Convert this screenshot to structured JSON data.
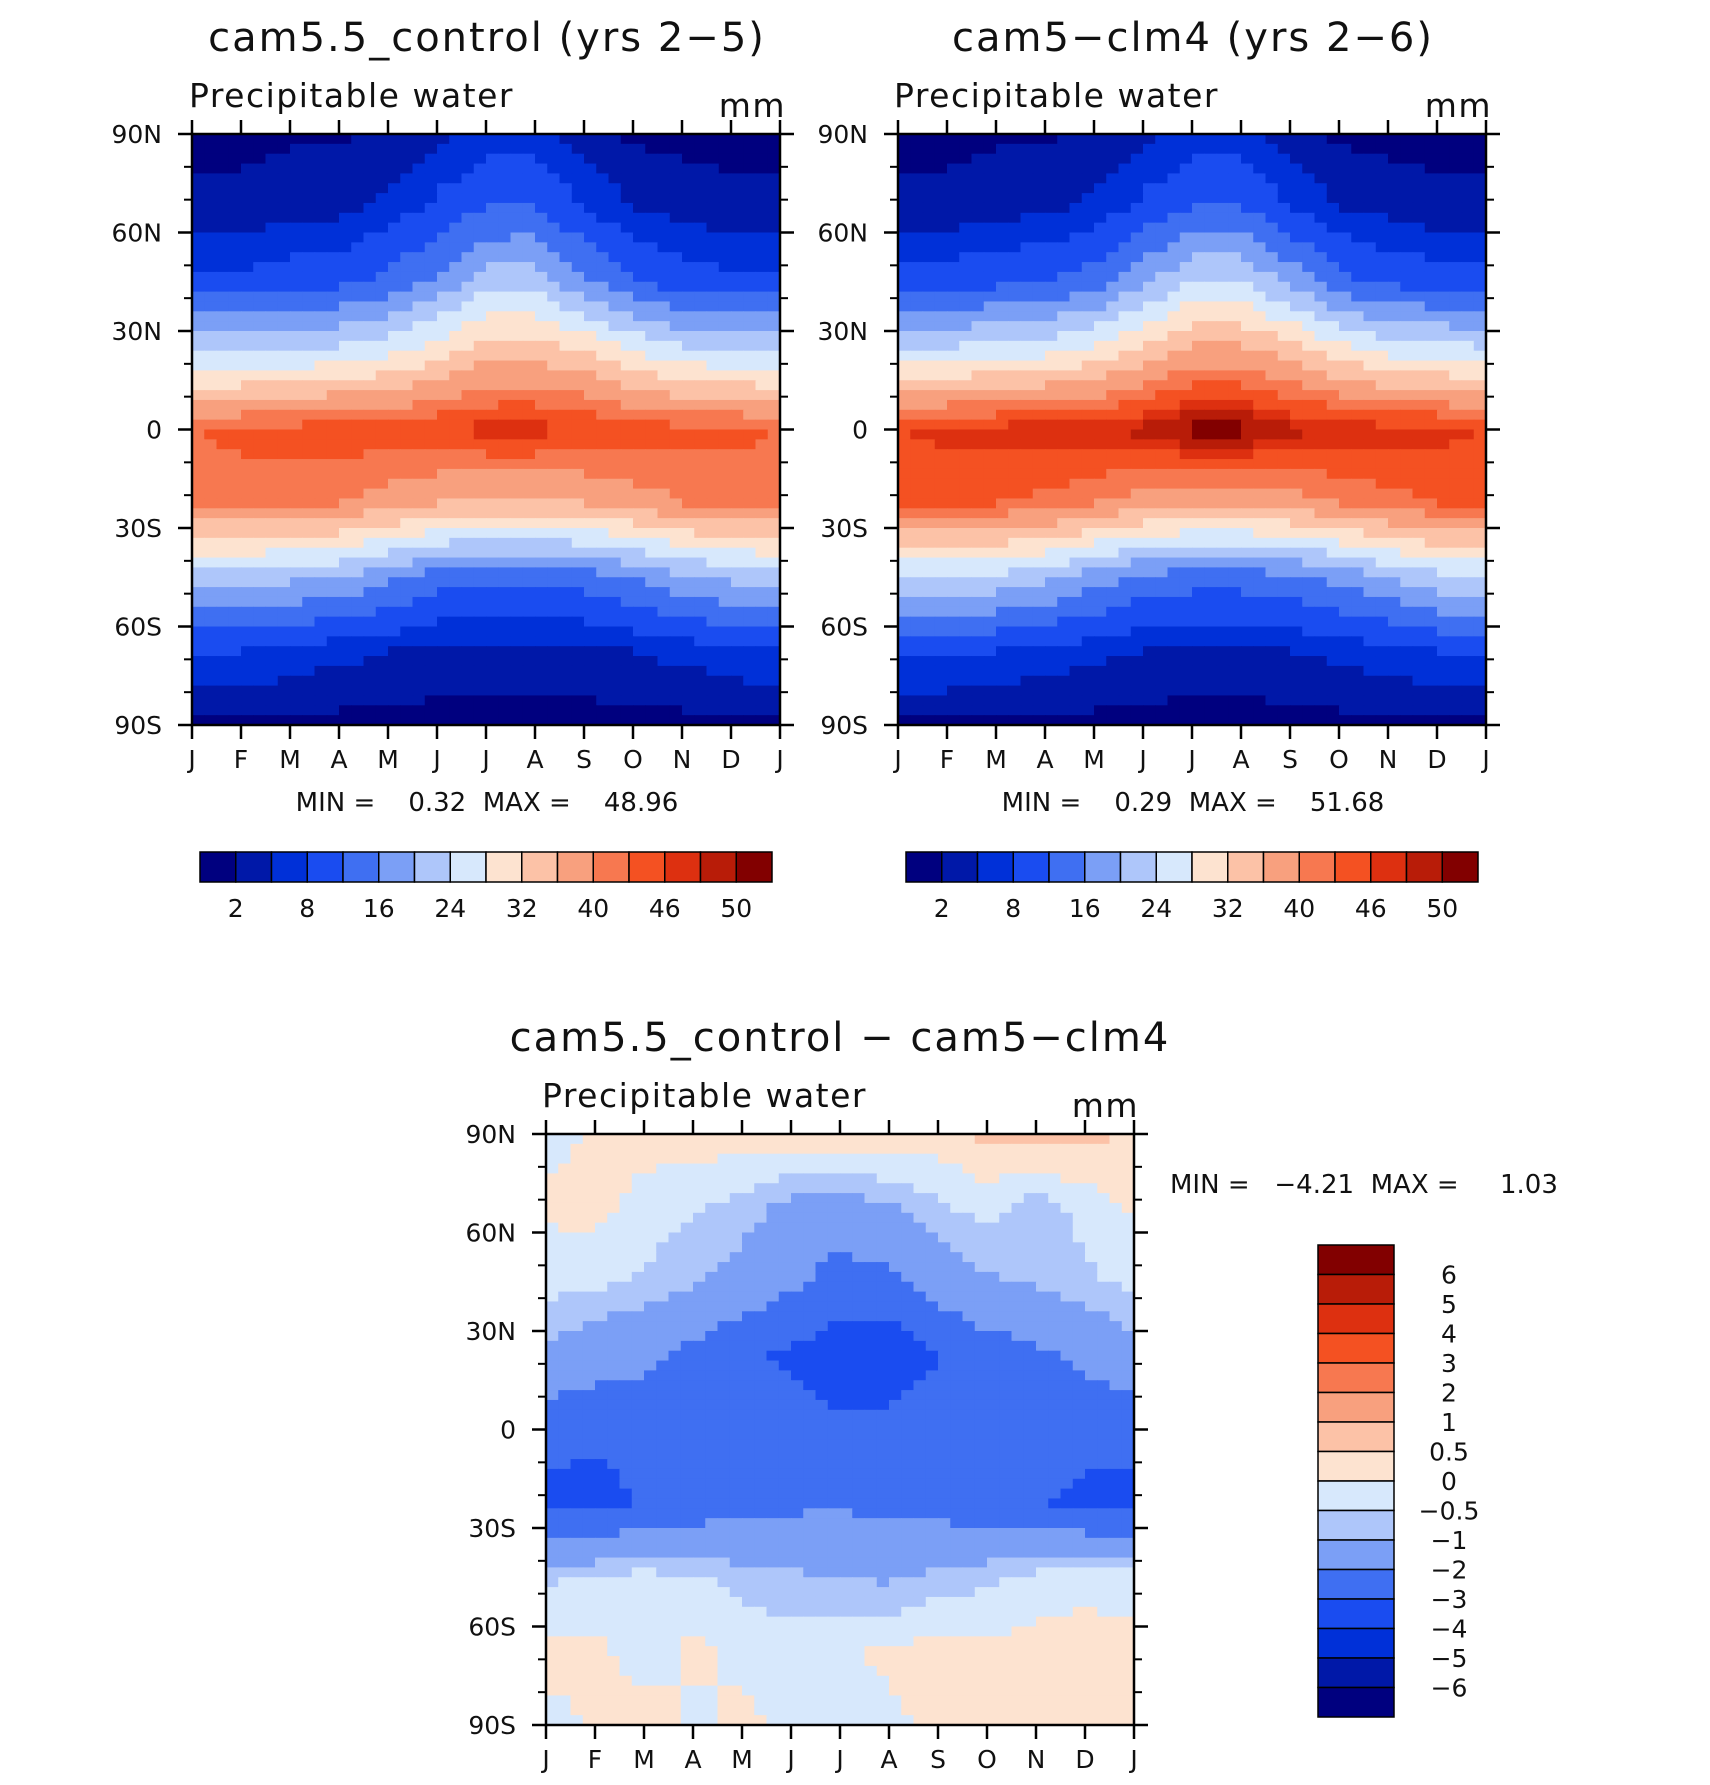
{
  "colors": {
    "absolute": [
      "#00007f",
      "#0018a8",
      "#0030d8",
      "#1a4cf0",
      "#3f6ff2",
      "#7b9ff6",
      "#aec6fa",
      "#d7e8fc",
      "#fde3d0",
      "#fcc2a7",
      "#f8a07e",
      "#f77850",
      "#f45122",
      "#dd3010",
      "#b81c08",
      "#820000"
    ],
    "difference": [
      "#00007f",
      "#0018a8",
      "#0030d8",
      "#1a4cf0",
      "#3f6ff2",
      "#7b9ff6",
      "#aec6fa",
      "#d7e8fc",
      "#fde3d0",
      "#fcc2a7",
      "#f8a07e",
      "#f77850",
      "#f45122",
      "#dd3010",
      "#b81c08",
      "#820000"
    ]
  },
  "month_labels": [
    "J",
    "F",
    "M",
    "A",
    "M",
    "J",
    "J",
    "A",
    "S",
    "O",
    "N",
    "D",
    "J"
  ],
  "lat_labels": [
    "90N",
    "60N",
    "30N",
    "0",
    "30S",
    "60S",
    "90S"
  ],
  "panels": [
    {
      "title": "cam5.5_control (yrs 2−5)",
      "variable": "Precipitable water",
      "units": "mm",
      "stats": "MIN =    0.32  MAX =    48.96",
      "colorbar_labels": [
        "2",
        "8",
        "16",
        "24",
        "32",
        "40",
        "46",
        "50"
      ]
    },
    {
      "title": "cam5−clm4 (yrs 2−6)",
      "variable": "Precipitable water",
      "units": "mm",
      "stats": "MIN =    0.29  MAX =    51.68",
      "colorbar_labels": [
        "2",
        "8",
        "16",
        "24",
        "32",
        "40",
        "46",
        "50"
      ]
    },
    {
      "title": "cam5.5_control − cam5−clm4",
      "variable": "Precipitable water",
      "units": "mm",
      "stats": "MIN =   −4.21  MAX =     1.03",
      "colorbar_labels": [
        "6",
        "5",
        "4",
        "3",
        "2",
        "1",
        "0.5",
        "0",
        "−0.5",
        "−1",
        "−2",
        "−3",
        "−4",
        "−5",
        "−6"
      ]
    }
  ],
  "chart_data": [
    {
      "type": "heatmap",
      "title": "cam5.5_control (yrs 2−5)",
      "subtitle": "Precipitable water",
      "units": "mm",
      "x": [
        "J",
        "F",
        "M",
        "A",
        "M",
        "J",
        "J",
        "A",
        "S",
        "O",
        "N",
        "D",
        "J"
      ],
      "y": [
        "90N",
        "60N",
        "30N",
        "0",
        "30S",
        "60S",
        "90S"
      ],
      "levels": [
        2,
        5,
        8,
        12,
        16,
        20,
        24,
        28,
        32,
        36,
        40,
        43,
        46,
        48,
        50
      ],
      "min": 0.32,
      "max": 48.96,
      "values": [
        [
          1,
          1,
          1.5,
          1.5,
          2.5,
          4,
          6,
          6,
          3,
          1.5,
          1,
          1,
          1
        ],
        [
          3,
          3,
          4,
          4,
          6,
          9,
          12,
          12,
          8,
          5,
          4,
          3,
          3
        ],
        [
          9,
          9,
          10,
          11,
          13,
          17,
          22,
          22,
          17,
          12,
          10,
          9,
          9
        ],
        [
          24,
          24,
          25,
          26,
          28,
          31,
          35,
          35,
          33,
          29,
          26,
          25,
          24
        ],
        [
          43,
          44,
          44,
          45,
          45,
          46,
          47,
          47,
          46,
          45,
          44,
          44,
          43
        ],
        [
          41,
          41,
          41,
          40,
          38,
          36,
          35,
          35,
          36,
          38,
          40,
          41,
          41
        ],
        [
          22,
          22,
          21,
          20,
          17,
          14,
          13,
          13,
          14,
          16,
          19,
          21,
          22
        ],
        [
          8,
          8,
          7,
          6,
          5,
          4,
          4,
          4,
          4,
          5,
          6,
          7,
          8
        ],
        [
          1.5,
          1.5,
          1.5,
          1,
          1,
          0.8,
          0.8,
          0.8,
          0.8,
          1,
          1,
          1.5,
          1.5
        ]
      ]
    },
    {
      "type": "heatmap",
      "title": "cam5−clm4 (yrs 2−6)",
      "subtitle": "Precipitable water",
      "units": "mm",
      "x": [
        "J",
        "F",
        "M",
        "A",
        "M",
        "J",
        "J",
        "A",
        "S",
        "O",
        "N",
        "D",
        "J"
      ],
      "y": [
        "90N",
        "60N",
        "30N",
        "0",
        "30S",
        "60S",
        "90S"
      ],
      "levels": [
        2,
        5,
        8,
        12,
        16,
        20,
        24,
        28,
        32,
        36,
        40,
        43,
        46,
        48,
        50
      ],
      "min": 0.29,
      "max": 51.68,
      "values": [
        [
          1,
          1,
          1.5,
          1.5,
          2.5,
          4,
          6,
          6,
          3,
          1.5,
          1,
          1,
          1
        ],
        [
          3,
          3,
          4,
          4,
          6,
          9,
          12,
          12,
          8,
          5,
          4,
          3,
          3
        ],
        [
          10,
          10,
          11,
          12,
          14,
          19,
          24,
          24,
          19,
          13,
          11,
          10,
          10
        ],
        [
          26,
          26,
          27,
          28,
          30,
          34,
          38,
          38,
          35,
          31,
          28,
          27,
          26
        ],
        [
          46,
          47,
          47,
          48,
          48,
          49,
          51,
          51,
          49,
          48,
          47,
          47,
          46
        ],
        [
          43,
          43,
          43,
          42,
          40,
          38,
          37,
          37,
          38,
          40,
          42,
          43,
          43
        ],
        [
          24,
          24,
          23,
          21,
          18,
          15,
          14,
          14,
          15,
          17,
          20,
          23,
          24
        ],
        [
          9,
          9,
          8,
          7,
          6,
          5,
          4,
          4,
          5,
          6,
          7,
          8,
          9
        ],
        [
          1.5,
          1.5,
          1.5,
          1,
          1,
          0.8,
          0.8,
          0.8,
          0.8,
          1,
          1,
          1.5,
          1.5
        ]
      ]
    },
    {
      "type": "heatmap",
      "title": "cam5.5_control − cam5−clm4",
      "subtitle": "Precipitable water",
      "units": "mm",
      "x": [
        "J",
        "F",
        "M",
        "A",
        "M",
        "J",
        "J",
        "A",
        "S",
        "O",
        "N",
        "D",
        "J"
      ],
      "y": [
        "90N",
        "60N",
        "30N",
        "0",
        "30S",
        "60S",
        "90S"
      ],
      "levels": [
        -6,
        -5,
        -4,
        -3,
        -2,
        -1,
        -0.5,
        0,
        0.5,
        1,
        2,
        3,
        4,
        5,
        6
      ],
      "min": -4.21,
      "max": 1.03,
      "values": [
        [
          -0.2,
          0.1,
          0.2,
          0.3,
          0.2,
          0.4,
          0.6,
          0.5,
          0.3,
          0.6,
          0.8,
          0.7,
          0.3
        ],
        [
          0.1,
          0.2,
          -0.2,
          -0.4,
          -0.7,
          -1.2,
          -1.4,
          -1.1,
          -0.6,
          -0.3,
          -0.8,
          -0.3,
          0.1
        ],
        [
          -0.3,
          -0.4,
          -0.6,
          -0.9,
          -1.3,
          -1.8,
          -2.4,
          -2.2,
          -1.5,
          -1.1,
          -0.9,
          -0.6,
          -0.4
        ],
        [
          -1.2,
          -1.5,
          -1.8,
          -2.3,
          -2.8,
          -3.2,
          -3.6,
          -3.8,
          -3.0,
          -2.5,
          -2.2,
          -1.8,
          -1.3
        ],
        [
          -2.6,
          -2.8,
          -2.6,
          -2.4,
          -2.8,
          -2.5,
          -2.8,
          -2.6,
          -2.4,
          -2.7,
          -2.8,
          -2.7,
          -2.6
        ],
        [
          -3.3,
          -3.4,
          -2.9,
          -2.6,
          -2.4,
          -2.2,
          -2.1,
          -2.3,
          -2.4,
          -2.6,
          -2.9,
          -3.2,
          -3.3
        ],
        [
          -0.6,
          -0.4,
          -0.3,
          -0.4,
          -0.7,
          -0.9,
          -1.0,
          -1.1,
          -0.8,
          -0.6,
          -0.3,
          -0.2,
          -0.3
        ],
        [
          0.2,
          0.1,
          -0.2,
          0.1,
          -0.1,
          -0.2,
          -0.1,
          0.1,
          0.2,
          0.1,
          0.2,
          0.3,
          0.2
        ],
        [
          -0.2,
          0.1,
          0.2,
          -0.1,
          0.1,
          -0.1,
          -0.2,
          -0.1,
          0.1,
          0.2,
          0.1,
          0.2,
          0.1
        ]
      ]
    }
  ]
}
